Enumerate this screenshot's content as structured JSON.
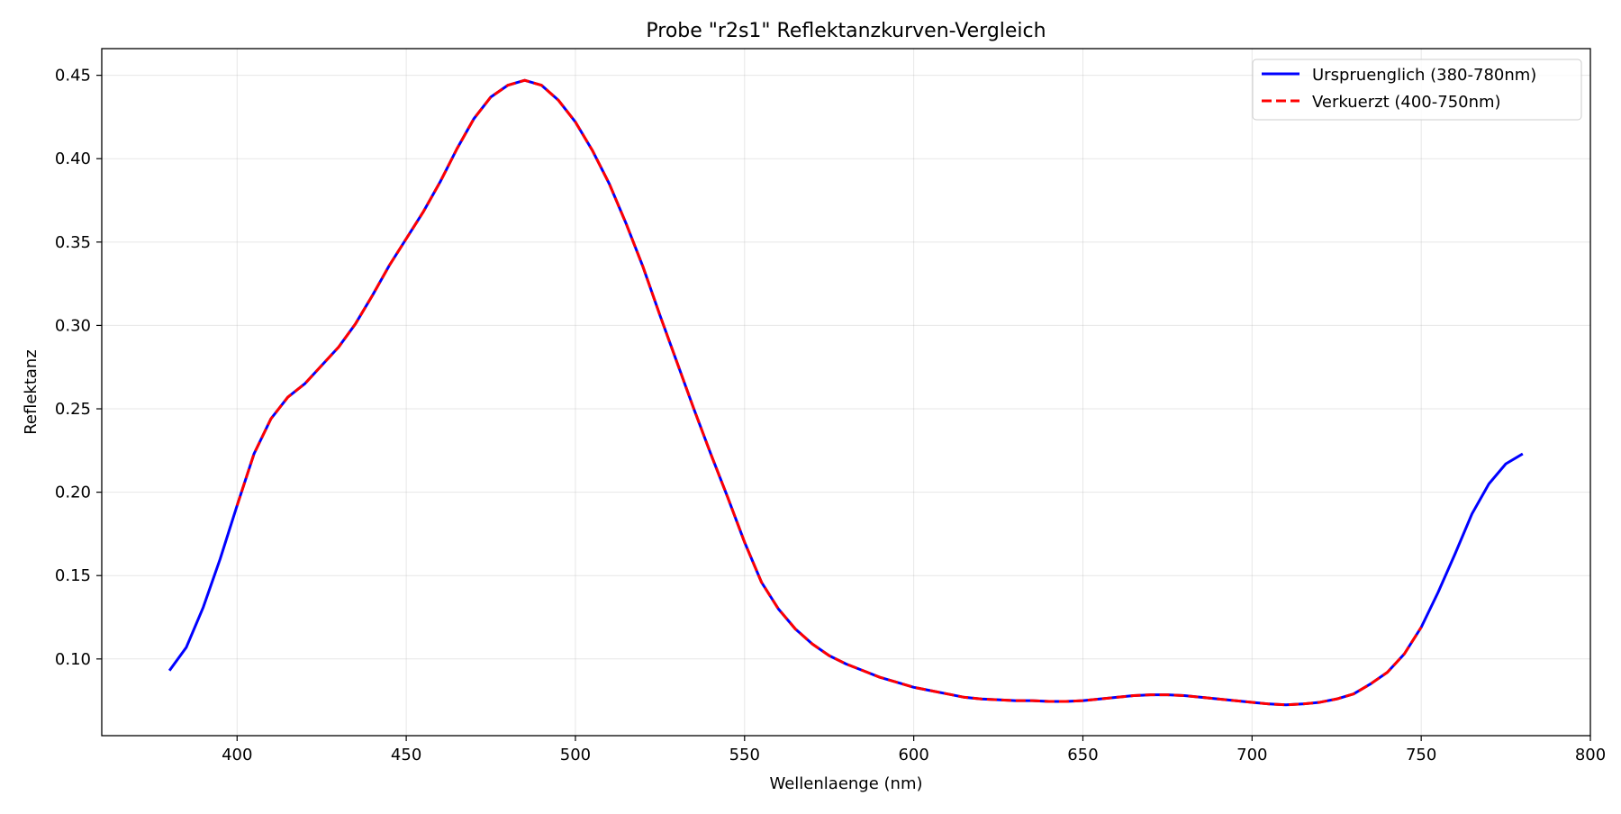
{
  "chart_data": {
    "type": "line",
    "title": "Probe \"r2s1\" Reflektanzkurven-Vergleich",
    "xlabel": "Wellenlaenge (nm)",
    "ylabel": "Reflektanz",
    "xlim": [
      360,
      800
    ],
    "ylim": [
      0.054,
      0.466
    ],
    "xticks": [
      400,
      450,
      500,
      550,
      600,
      650,
      700,
      750,
      800
    ],
    "yticks": [
      0.1,
      0.15,
      0.2,
      0.25,
      0.3,
      0.35,
      0.4,
      0.45
    ],
    "ytick_labels": [
      "0.10",
      "0.15",
      "0.20",
      "0.25",
      "0.30",
      "0.35",
      "0.40",
      "0.45"
    ],
    "grid": true,
    "legend_position": "top-right",
    "series": [
      {
        "name": "Urspruenglich (380-780nm)",
        "color": "#0000ff",
        "style": "solid",
        "x": [
          380,
          385,
          390,
          395,
          400,
          405,
          410,
          415,
          420,
          425,
          430,
          435,
          440,
          445,
          450,
          455,
          460,
          465,
          470,
          475,
          480,
          485,
          490,
          495,
          500,
          505,
          510,
          515,
          520,
          525,
          530,
          535,
          540,
          545,
          550,
          555,
          560,
          565,
          570,
          575,
          580,
          585,
          590,
          595,
          600,
          605,
          610,
          615,
          620,
          625,
          630,
          635,
          640,
          645,
          650,
          655,
          660,
          665,
          670,
          675,
          680,
          685,
          690,
          695,
          700,
          705,
          710,
          715,
          720,
          725,
          730,
          735,
          740,
          745,
          750,
          755,
          760,
          765,
          770,
          775,
          780
        ],
        "y": [
          0.093,
          0.107,
          0.131,
          0.16,
          0.192,
          0.223,
          0.244,
          0.257,
          0.265,
          0.276,
          0.287,
          0.301,
          0.318,
          0.336,
          0.352,
          0.368,
          0.386,
          0.406,
          0.424,
          0.437,
          0.444,
          0.447,
          0.444,
          0.435,
          0.422,
          0.405,
          0.385,
          0.361,
          0.335,
          0.306,
          0.278,
          0.25,
          0.223,
          0.197,
          0.17,
          0.146,
          0.13,
          0.118,
          0.109,
          0.102,
          0.097,
          0.093,
          0.089,
          0.086,
          0.083,
          0.081,
          0.079,
          0.077,
          0.076,
          0.0755,
          0.075,
          0.075,
          0.0745,
          0.0745,
          0.075,
          0.076,
          0.077,
          0.078,
          0.0785,
          0.0785,
          0.078,
          0.077,
          0.076,
          0.075,
          0.074,
          0.073,
          0.0725,
          0.073,
          0.074,
          0.076,
          0.079,
          0.085,
          0.092,
          0.103,
          0.119,
          0.14,
          0.163,
          0.187,
          0.205,
          0.217,
          0.223
        ]
      },
      {
        "name": "Verkuerzt (400-750nm)",
        "color": "#ff0000",
        "style": "dashed",
        "x": [
          400,
          405,
          410,
          415,
          420,
          425,
          430,
          435,
          440,
          445,
          450,
          455,
          460,
          465,
          470,
          475,
          480,
          485,
          490,
          495,
          500,
          505,
          510,
          515,
          520,
          525,
          530,
          535,
          540,
          545,
          550,
          555,
          560,
          565,
          570,
          575,
          580,
          585,
          590,
          595,
          600,
          605,
          610,
          615,
          620,
          625,
          630,
          635,
          640,
          645,
          650,
          655,
          660,
          665,
          670,
          675,
          680,
          685,
          690,
          695,
          700,
          705,
          710,
          715,
          720,
          725,
          730,
          735,
          740,
          745,
          750
        ],
        "y": [
          0.192,
          0.223,
          0.244,
          0.257,
          0.265,
          0.276,
          0.287,
          0.301,
          0.318,
          0.336,
          0.352,
          0.368,
          0.386,
          0.406,
          0.424,
          0.437,
          0.444,
          0.447,
          0.444,
          0.435,
          0.422,
          0.405,
          0.385,
          0.361,
          0.335,
          0.306,
          0.278,
          0.25,
          0.223,
          0.197,
          0.17,
          0.146,
          0.13,
          0.118,
          0.109,
          0.102,
          0.097,
          0.093,
          0.089,
          0.086,
          0.083,
          0.081,
          0.079,
          0.077,
          0.076,
          0.0755,
          0.075,
          0.075,
          0.0745,
          0.0745,
          0.075,
          0.076,
          0.077,
          0.078,
          0.0785,
          0.0785,
          0.078,
          0.077,
          0.076,
          0.075,
          0.074,
          0.073,
          0.0725,
          0.073,
          0.074,
          0.076,
          0.079,
          0.085,
          0.092,
          0.103,
          0.119
        ]
      }
    ]
  }
}
